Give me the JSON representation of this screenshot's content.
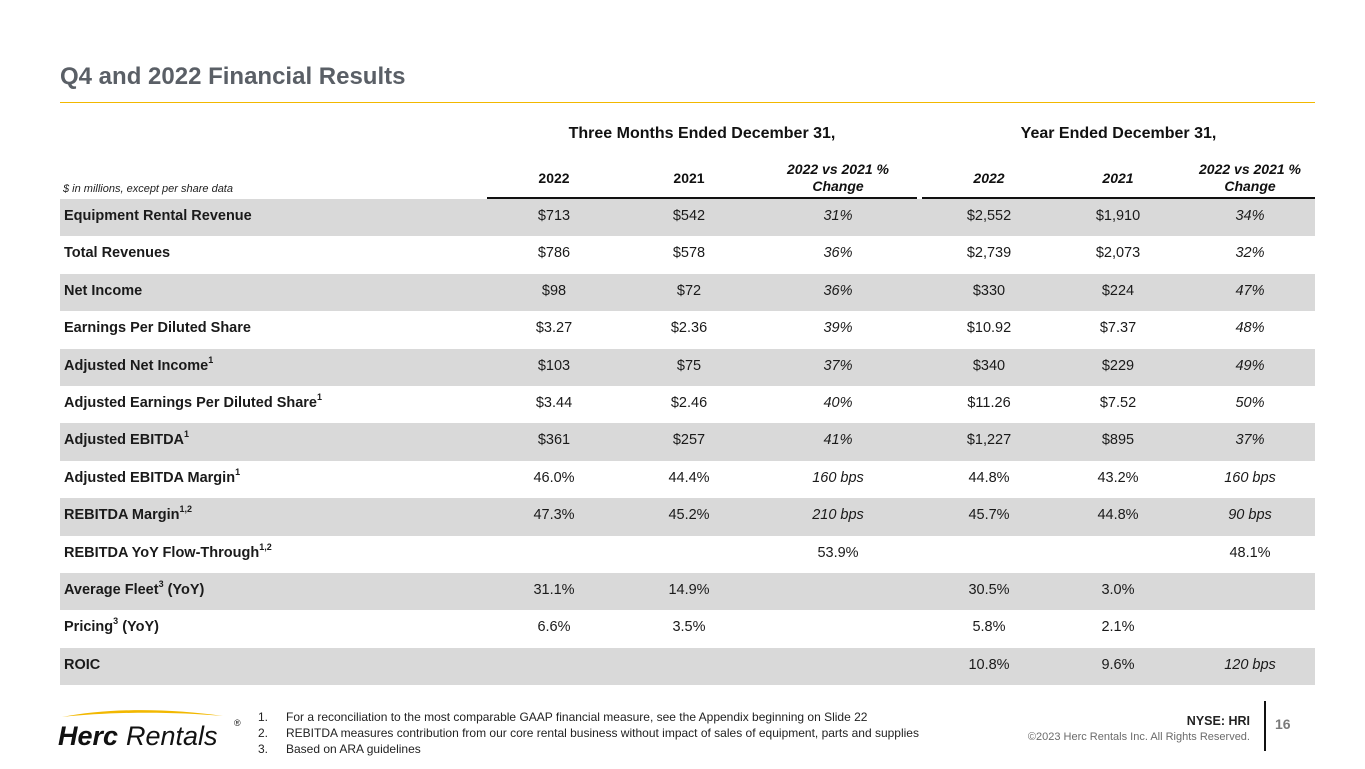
{
  "slide": {
    "title": "Q4 and 2022 Financial Results",
    "units_note": "$ in millions, except per share data",
    "page_number": "16",
    "ticker": "NYSE: HRI",
    "copyright": "©2023 Herc Rentals Inc.  All Rights Reserved."
  },
  "brand": {
    "name": "Herc Rentals",
    "colors": {
      "accent": "#f2b800",
      "title": "#5a5f66",
      "shade": "#d9d9d9"
    }
  },
  "table": {
    "group_headers": [
      "Three Months Ended December 31,",
      "Year Ended December 31,"
    ],
    "columns": [
      [
        "2022"
      ],
      [
        "2021"
      ],
      [
        "2022 vs 2021 %",
        "Change"
      ],
      [
        "2022"
      ],
      [
        "2021"
      ],
      [
        "2022 vs 2021 %",
        "Change"
      ]
    ],
    "rows": [
      {
        "label": "Equipment Rental Revenue",
        "sup": "",
        "values": [
          "$713",
          "$542",
          "31%",
          "$2,552",
          "$1,910",
          "34%"
        ]
      },
      {
        "label": "Total Revenues",
        "sup": "",
        "values": [
          "$786",
          "$578",
          "36%",
          "$2,739",
          "$2,073",
          "32%"
        ]
      },
      {
        "label": "Net Income",
        "sup": "",
        "values": [
          "$98",
          "$72",
          "36%",
          "$330",
          "$224",
          "47%"
        ]
      },
      {
        "label": "Earnings Per Diluted Share",
        "sup": "",
        "values": [
          "$3.27",
          "$2.36",
          "39%",
          "$10.92",
          "$7.37",
          "48%"
        ]
      },
      {
        "label": "Adjusted Net Income",
        "sup": "1",
        "values": [
          "$103",
          "$75",
          "37%",
          "$340",
          "$229",
          "49%"
        ]
      },
      {
        "label": "Adjusted Earnings Per Diluted Share",
        "sup": "1",
        "values": [
          "$3.44",
          "$2.46",
          "40%",
          "$11.26",
          "$7.52",
          "50%"
        ]
      },
      {
        "label": "Adjusted EBITDA",
        "sup": "1",
        "values": [
          "$361",
          "$257",
          "41%",
          "$1,227",
          "$895",
          "37%"
        ]
      },
      {
        "label": "Adjusted EBITDA Margin",
        "sup": "1",
        "values": [
          "46.0%",
          "44.4%",
          "160 bps",
          "44.8%",
          "43.2%",
          "160 bps"
        ]
      },
      {
        "label": "REBITDA Margin",
        "sup": "1,2",
        "values": [
          "47.3%",
          "45.2%",
          "210 bps",
          "45.7%",
          "44.8%",
          "90 bps"
        ]
      },
      {
        "label": "REBITDA YoY Flow-Through",
        "sup": "1,2",
        "values": [
          "",
          "",
          "53.9%",
          "",
          "",
          "48.1%"
        ]
      },
      {
        "label": "Average Fleet",
        "sup": "3",
        "suffix": " (YoY)",
        "values": [
          "31.1%",
          "14.9%",
          "",
          "30.5%",
          "3.0%",
          ""
        ]
      },
      {
        "label": "Pricing",
        "sup": "3",
        "suffix": " (YoY)",
        "values": [
          "6.6%",
          "3.5%",
          "",
          "5.8%",
          "2.1%",
          ""
        ]
      },
      {
        "label": "ROIC",
        "sup": "",
        "values": [
          "",
          "",
          "",
          "10.8%",
          "9.6%",
          "120 bps"
        ]
      }
    ]
  },
  "footnotes": [
    {
      "num": "1.",
      "text": "For a reconciliation to the most comparable GAAP financial measure, see the Appendix beginning on Slide 22"
    },
    {
      "num": "2.",
      "text": "REBITDA measures contribution from our core rental business without impact of sales of equipment, parts and supplies"
    },
    {
      "num": "3.",
      "text": "Based on ARA guidelines"
    }
  ]
}
